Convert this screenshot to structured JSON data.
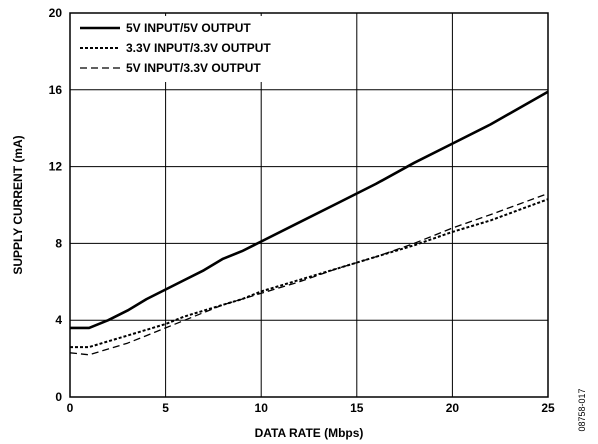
{
  "figure_id": "08758-017",
  "chart_data": {
    "type": "line",
    "title": "",
    "xlabel": "DATA RATE (Mbps)",
    "ylabel": "SUPPLY CURRENT (mA)",
    "xlim": [
      0,
      25
    ],
    "ylim": [
      0,
      20
    ],
    "xticks": [
      0,
      5,
      10,
      15,
      20,
      25
    ],
    "yticks": [
      0,
      4,
      8,
      12,
      16,
      20
    ],
    "grid": true,
    "legend_position": "top-left",
    "series": [
      {
        "name": "5V INPUT/5V OUTPUT",
        "style": "solid",
        "x": [
          0,
          1,
          2,
          3,
          4,
          5,
          6,
          7,
          8,
          9,
          10,
          12,
          14,
          16,
          18,
          20,
          22,
          25
        ],
        "y": [
          3.6,
          3.6,
          4.0,
          4.5,
          5.1,
          5.6,
          6.1,
          6.6,
          7.2,
          7.6,
          8.1,
          9.1,
          10.1,
          11.1,
          12.2,
          13.2,
          14.2,
          15.9
        ]
      },
      {
        "name": "3.3V INPUT/3.3V OUTPUT",
        "style": "dotted",
        "x": [
          0,
          1,
          2,
          3,
          4,
          5,
          6,
          7,
          8,
          9,
          10,
          12,
          14,
          16,
          18,
          20,
          22,
          25
        ],
        "y": [
          2.6,
          2.6,
          2.9,
          3.2,
          3.5,
          3.8,
          4.2,
          4.5,
          4.8,
          5.1,
          5.5,
          6.1,
          6.7,
          7.3,
          7.9,
          8.6,
          9.2,
          10.3
        ]
      },
      {
        "name": "5V INPUT/3.3V OUTPUT",
        "style": "dashed",
        "x": [
          0,
          1,
          2,
          3,
          4,
          5,
          6,
          7,
          8,
          9,
          10,
          12,
          14,
          16,
          18,
          20,
          22,
          25
        ],
        "y": [
          2.3,
          2.2,
          2.5,
          2.8,
          3.2,
          3.6,
          4.0,
          4.4,
          4.8,
          5.1,
          5.4,
          6.0,
          6.7,
          7.3,
          8.0,
          8.8,
          9.5,
          10.6
        ]
      }
    ]
  }
}
